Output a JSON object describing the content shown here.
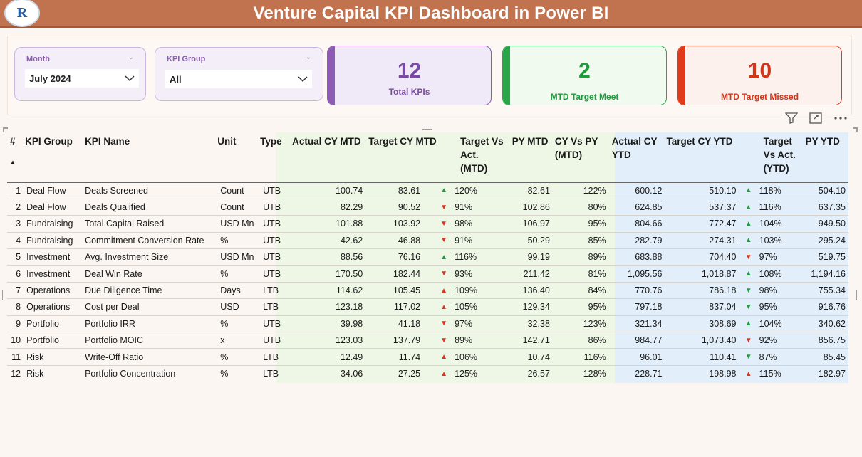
{
  "header": {
    "title": "Venture Capital KPI Dashboard in Power BI",
    "logo_text": "R"
  },
  "slicers": {
    "month": {
      "label": "Month",
      "value": "July 2024"
    },
    "kpi_group": {
      "label": "KPI Group",
      "value": "All"
    }
  },
  "cards": {
    "total": {
      "value": "12",
      "label": "Total KPIs",
      "color": "#8d5ab4"
    },
    "meet": {
      "value": "2",
      "label": "MTD Target Meet",
      "color": "#29a64a"
    },
    "missed": {
      "value": "10",
      "label": "MTD Target Missed",
      "color": "#e03a1a"
    }
  },
  "table": {
    "headers": {
      "num": "#",
      "group": "KPI Group",
      "name": "KPI Name",
      "unit": "Unit",
      "type": "Type",
      "actual_mtd": "Actual CY MTD",
      "target_mtd": "Target CY MTD",
      "tva_mtd": "Target Vs Act. (MTD)",
      "py_mtd": "PY MTD",
      "cyvpy_mtd": "CY Vs PY (MTD)",
      "actual_ytd": "Actual CY YTD",
      "target_ytd": "Target CY YTD",
      "tva_ytd": "Target Vs Act. (YTD)",
      "py_ytd": "PY YTD"
    },
    "rows": [
      {
        "n": "1",
        "group": "Deal Flow",
        "name": "Deals Screened",
        "unit": "Count",
        "type": "UTB",
        "a_mtd": "100.74",
        "t_mtd": "83.61",
        "dir_mtd": "up",
        "tva_mtd": "120%",
        "py_mtd": "82.61",
        "cyvpy": "122%",
        "a_ytd": "600.12",
        "t_ytd": "510.10",
        "dir_ytd": "up",
        "tva_ytd": "118%",
        "py_ytd": "504.10"
      },
      {
        "n": "2",
        "group": "Deal Flow",
        "name": "Deals Qualified",
        "unit": "Count",
        "type": "UTB",
        "a_mtd": "82.29",
        "t_mtd": "90.52",
        "dir_mtd": "down",
        "tva_mtd": "91%",
        "py_mtd": "102.86",
        "cyvpy": "80%",
        "a_ytd": "624.85",
        "t_ytd": "537.37",
        "dir_ytd": "up",
        "tva_ytd": "116%",
        "py_ytd": "637.35"
      },
      {
        "n": "3",
        "group": "Fundraising",
        "name": "Total Capital Raised",
        "unit": "USD Mn",
        "type": "UTB",
        "a_mtd": "101.88",
        "t_mtd": "103.92",
        "dir_mtd": "down",
        "tva_mtd": "98%",
        "py_mtd": "106.97",
        "cyvpy": "95%",
        "a_ytd": "804.66",
        "t_ytd": "772.47",
        "dir_ytd": "up",
        "tva_ytd": "104%",
        "py_ytd": "949.50"
      },
      {
        "n": "4",
        "group": "Fundraising",
        "name": "Commitment Conversion Rate",
        "unit": "%",
        "type": "UTB",
        "a_mtd": "42.62",
        "t_mtd": "46.88",
        "dir_mtd": "down",
        "tva_mtd": "91%",
        "py_mtd": "50.29",
        "cyvpy": "85%",
        "a_ytd": "282.79",
        "t_ytd": "274.31",
        "dir_ytd": "up",
        "tva_ytd": "103%",
        "py_ytd": "295.24"
      },
      {
        "n": "5",
        "group": "Investment",
        "name": "Avg. Investment Size",
        "unit": "USD Mn",
        "type": "UTB",
        "a_mtd": "88.56",
        "t_mtd": "76.16",
        "dir_mtd": "up",
        "tva_mtd": "116%",
        "py_mtd": "99.19",
        "cyvpy": "89%",
        "a_ytd": "683.88",
        "t_ytd": "704.40",
        "dir_ytd": "down",
        "tva_ytd": "97%",
        "py_ytd": "519.75"
      },
      {
        "n": "6",
        "group": "Investment",
        "name": "Deal Win Rate",
        "unit": "%",
        "type": "UTB",
        "a_mtd": "170.50",
        "t_mtd": "182.44",
        "dir_mtd": "down",
        "tva_mtd": "93%",
        "py_mtd": "211.42",
        "cyvpy": "81%",
        "a_ytd": "1,095.56",
        "t_ytd": "1,018.87",
        "dir_ytd": "up",
        "tva_ytd": "108%",
        "py_ytd": "1,194.16"
      },
      {
        "n": "7",
        "group": "Operations",
        "name": "Due Diligence Time",
        "unit": "Days",
        "type": "LTB",
        "a_mtd": "114.62",
        "t_mtd": "105.45",
        "dir_mtd": "lup",
        "tva_mtd": "109%",
        "py_mtd": "136.40",
        "cyvpy": "84%",
        "a_ytd": "770.76",
        "t_ytd": "786.18",
        "dir_ytd": "gdown",
        "tva_ytd": "98%",
        "py_ytd": "755.34"
      },
      {
        "n": "8",
        "group": "Operations",
        "name": "Cost per Deal",
        "unit": "USD",
        "type": "LTB",
        "a_mtd": "123.18",
        "t_mtd": "117.02",
        "dir_mtd": "lup",
        "tva_mtd": "105%",
        "py_mtd": "129.34",
        "cyvpy": "95%",
        "a_ytd": "797.18",
        "t_ytd": "837.04",
        "dir_ytd": "gdown",
        "tva_ytd": "95%",
        "py_ytd": "916.76"
      },
      {
        "n": "9",
        "group": "Portfolio",
        "name": "Portfolio IRR",
        "unit": "%",
        "type": "UTB",
        "a_mtd": "39.98",
        "t_mtd": "41.18",
        "dir_mtd": "down",
        "tva_mtd": "97%",
        "py_mtd": "32.38",
        "cyvpy": "123%",
        "a_ytd": "321.34",
        "t_ytd": "308.69",
        "dir_ytd": "up",
        "tva_ytd": "104%",
        "py_ytd": "340.62"
      },
      {
        "n": "10",
        "group": "Portfolio",
        "name": "Portfolio MOIC",
        "unit": "x",
        "type": "UTB",
        "a_mtd": "123.03",
        "t_mtd": "137.79",
        "dir_mtd": "down",
        "tva_mtd": "89%",
        "py_mtd": "142.71",
        "cyvpy": "86%",
        "a_ytd": "984.77",
        "t_ytd": "1,073.40",
        "dir_ytd": "down",
        "tva_ytd": "92%",
        "py_ytd": "856.75"
      },
      {
        "n": "11",
        "group": "Risk",
        "name": "Write-Off Ratio",
        "unit": "%",
        "type": "LTB",
        "a_mtd": "12.49",
        "t_mtd": "11.74",
        "dir_mtd": "lup",
        "tva_mtd": "106%",
        "py_mtd": "10.74",
        "cyvpy": "116%",
        "a_ytd": "96.01",
        "t_ytd": "110.41",
        "dir_ytd": "gdown",
        "tva_ytd": "87%",
        "py_ytd": "85.45"
      },
      {
        "n": "12",
        "group": "Risk",
        "name": "Portfolio Concentration",
        "unit": "%",
        "type": "LTB",
        "a_mtd": "34.06",
        "t_mtd": "27.25",
        "dir_mtd": "lup",
        "tva_mtd": "125%",
        "py_mtd": "26.57",
        "cyvpy": "128%",
        "a_ytd": "228.71",
        "t_ytd": "198.98",
        "dir_ytd": "lup",
        "tva_ytd": "115%",
        "py_ytd": "182.97"
      }
    ]
  },
  "icons": {
    "filter": "filter-icon",
    "focus": "focus-mode-icon",
    "more": "more-options-icon",
    "sort": "sort-ascending-icon"
  },
  "colors": {
    "header_bg": "#c0734e",
    "mtd_bg": "#eef7e6",
    "ytd_bg": "#e2eef9",
    "up_arrow": "#1f9b3e",
    "down_arrow": "#e0301e"
  }
}
